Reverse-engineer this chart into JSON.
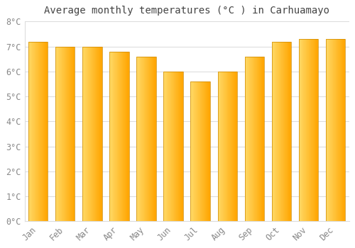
{
  "title": "Average monthly temperatures (°C ) in Carhuamayo",
  "months": [
    "Jan",
    "Feb",
    "Mar",
    "Apr",
    "May",
    "Jun",
    "Jul",
    "Aug",
    "Sep",
    "Oct",
    "Nov",
    "Dec"
  ],
  "values": [
    7.2,
    7.0,
    7.0,
    6.8,
    6.6,
    6.0,
    5.6,
    6.0,
    6.6,
    7.2,
    7.3,
    7.3
  ],
  "bar_color_left": "#FFD966",
  "bar_color_right": "#FFA500",
  "bar_edge_color": "#CC8800",
  "background_color": "#FFFFFF",
  "grid_color": "#DDDDDD",
  "text_color": "#888888",
  "title_color": "#444444",
  "ylim": [
    0,
    8
  ],
  "yticks": [
    0,
    1,
    2,
    3,
    4,
    5,
    6,
    7,
    8
  ],
  "title_fontsize": 10,
  "tick_fontsize": 8.5,
  "bar_width": 0.72,
  "n_gradient_strips": 50
}
